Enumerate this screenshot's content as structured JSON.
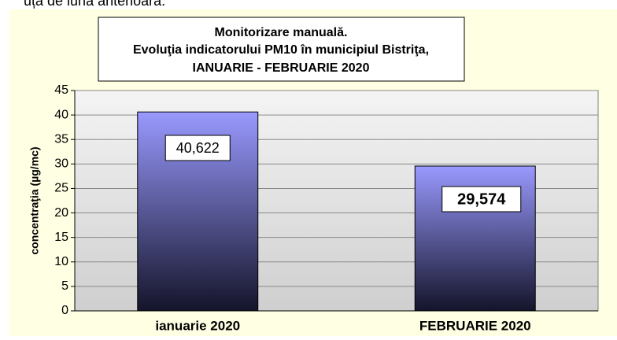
{
  "note": "uța de luna anterioară.",
  "chart_data": {
    "type": "bar",
    "title": [
      "Monitorizare manuală.",
      "Evoluţia indicatorului PM10 în municipiul Bistriţa,",
      "IANUARIE - FEBRUARIE 2020"
    ],
    "y_label": "concentraţia (µg/mc)",
    "categories": [
      "ianuarie 2020",
      "FEBRUARIE 2020"
    ],
    "values": [
      40.622,
      29.574
    ],
    "value_labels": [
      "40,622",
      "29,574"
    ],
    "color": "#9999ff",
    "ylim": [
      0,
      45
    ],
    "yticks": [
      0,
      5,
      10,
      15,
      20,
      25,
      30,
      35,
      40,
      45
    ],
    "grid": true
  }
}
